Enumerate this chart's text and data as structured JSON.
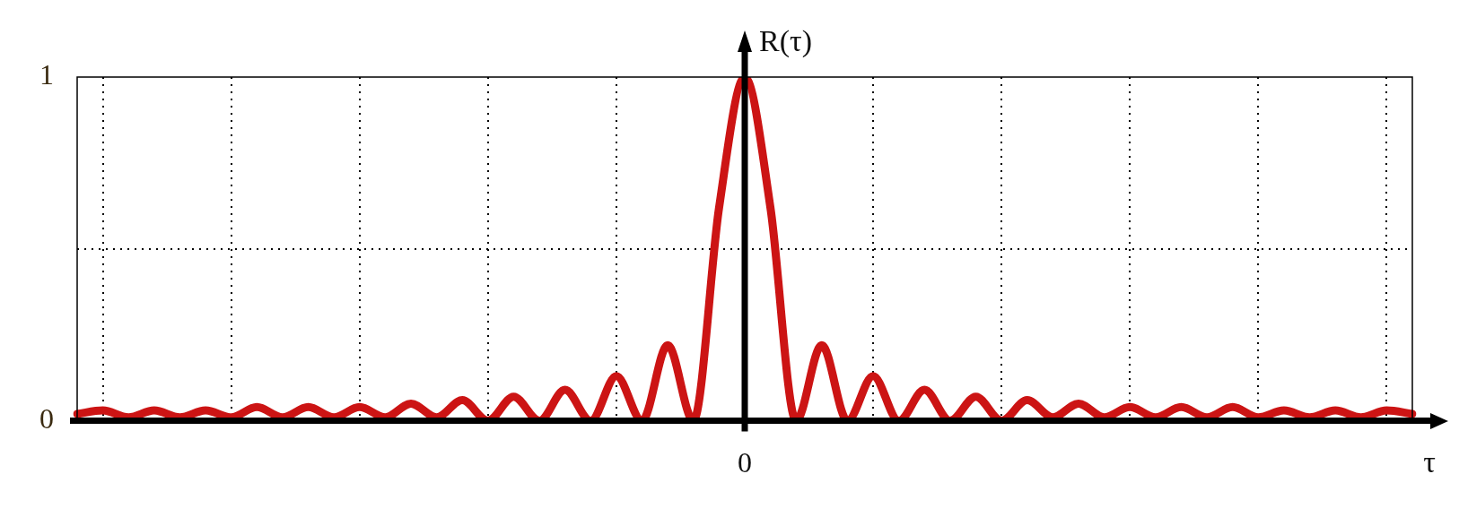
{
  "chart_data": {
    "type": "line",
    "xlabel": "τ",
    "ylabel": "R(τ)",
    "categories": [
      null,
      null,
      null,
      null,
      null,
      null,
      null,
      null,
      null,
      null,
      null,
      null,
      null,
      null,
      null,
      null,
      null,
      null,
      null,
      null,
      null,
      null,
      null,
      null,
      null,
      null,
      "0",
      null,
      null,
      null,
      null,
      null,
      null,
      null,
      null,
      null,
      null,
      null,
      null,
      null,
      null,
      null,
      null,
      null,
      null,
      null,
      null,
      null,
      null,
      null,
      null,
      null,
      null
    ],
    "series": [
      {
        "color": "#cc1414",
        "values": [
          0.02,
          0.03,
          0.01,
          0.03,
          0.01,
          0.03,
          0.01,
          0.04,
          0.01,
          0.04,
          0.01,
          0.04,
          0.01,
          0.05,
          0.01,
          0.06,
          0,
          0.07,
          0,
          0.09,
          0,
          0.13,
          0,
          0.22,
          0,
          0.62,
          1,
          0.62,
          0,
          0.22,
          0,
          0.13,
          0,
          0.09,
          0,
          0.07,
          0,
          0.06,
          0.01,
          0.05,
          0.01,
          0.04,
          0.01,
          0.04,
          0.01,
          0.04,
          0.01,
          0.03,
          0.01,
          0.03,
          0.01,
          0.03,
          0.02
        ]
      }
    ],
    "ylim": [
      0,
      1
    ],
    "yticks": [
      0,
      {
        "value": 0.5,
        "label": null
      },
      1
    ],
    "grid": true,
    "marker": "none",
    "line_style": "solid"
  }
}
